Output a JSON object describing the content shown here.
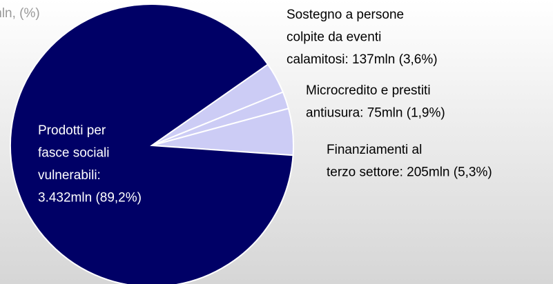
{
  "chart_data": {
    "type": "pie",
    "title": "mln, (%)",
    "categories": [
      "Sostegno a persone colpite da eventi calamitosi",
      "Microcredito e prestiti antiusura",
      "Finanziamenti al terzo settore",
      "Prodotti per fasce sociali vulnerabili"
    ],
    "values": [
      137,
      75,
      205,
      3432
    ],
    "labels": [
      [
        "Sostegno a persone",
        "colpite da eventi",
        "calamitosi: 137mln (3,6%)"
      ],
      [
        "Microcredito e prestiti",
        "antiusura: 75mln (1,9%)"
      ],
      [
        "Finanziamenti al",
        "terzo settore: 205mln (5,3%)"
      ],
      [
        "Prodotti per",
        "fasce sociali",
        "vulnerabili:",
        "3.432mln (89,2%)"
      ]
    ],
    "colors": [
      "#ccccf5",
      "#ccccf5",
      "#ccccf5",
      "#000066"
    ]
  }
}
